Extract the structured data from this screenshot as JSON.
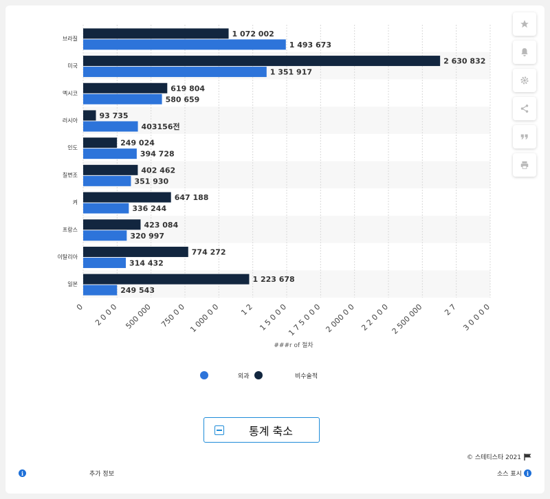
{
  "toolbar": {
    "icons": [
      "star-icon",
      "bell-icon",
      "gear-icon",
      "share-icon",
      "quote-icon",
      "print-icon"
    ]
  },
  "chart_data": {
    "type": "bar",
    "orientation": "horizontal",
    "categories": [
      "브라질",
      "미국",
      "멕시코",
      "러시아",
      "인도",
      "칠변조",
      "켜",
      "프랑스",
      "이탈리아",
      "일본"
    ],
    "series": [
      {
        "name": "비수술적",
        "color": "#12263f",
        "values": [
          1072002,
          2630832,
          619804,
          93735,
          249024,
          402462,
          647188,
          423084,
          774272,
          1223678
        ],
        "labels": [
          "1 072 002",
          "2 630 832",
          "619 804",
          "93 735",
          "249 024",
          "402 462",
          "647 188",
          "423 084",
          "774 272",
          "1 223 678"
        ]
      },
      {
        "name": "외과",
        "color": "#2d74da",
        "values": [
          1493673,
          1351917,
          580659,
          403156,
          394728,
          351930,
          336244,
          320997,
          314432,
          249543
        ],
        "labels": [
          "1 493 673",
          "1 351 917",
          "580 659",
          "403156전",
          "394 728",
          "351 930",
          "336 244",
          "320 997",
          "314 432",
          "249 543"
        ]
      }
    ],
    "xlim": [
      0,
      3000000
    ],
    "xticks": [
      0,
      250000,
      500000,
      750000,
      1000000,
      1250000,
      1500000,
      1750000,
      2000000,
      2250000,
      2500000,
      2750000,
      3000000
    ],
    "xtick_labels": [
      "0",
      "2  0 0  0",
      "500 000",
      "750 0  0",
      "1 000 0  0",
      "1  2",
      "1 5  0 0  0",
      "1 7 5 0  0 0",
      "2 000 0  0",
      "2 2  0 0  0",
      "2 500 000",
      "2  7",
      "3 0  0 0  0"
    ],
    "xlabel": "###r of       절차",
    "grid": true,
    "legend_position": "bottom"
  },
  "legend": [
    {
      "label": "외과",
      "color": "#2d74da"
    },
    {
      "label": "비수술적",
      "color": "#12263f"
    }
  ],
  "collapse_label": "통계 축소",
  "copyright": "©  스테티스타 2021",
  "footer": {
    "more_info": "추가 정보",
    "show_source": "소스 표시",
    "info_glyph": "i"
  }
}
